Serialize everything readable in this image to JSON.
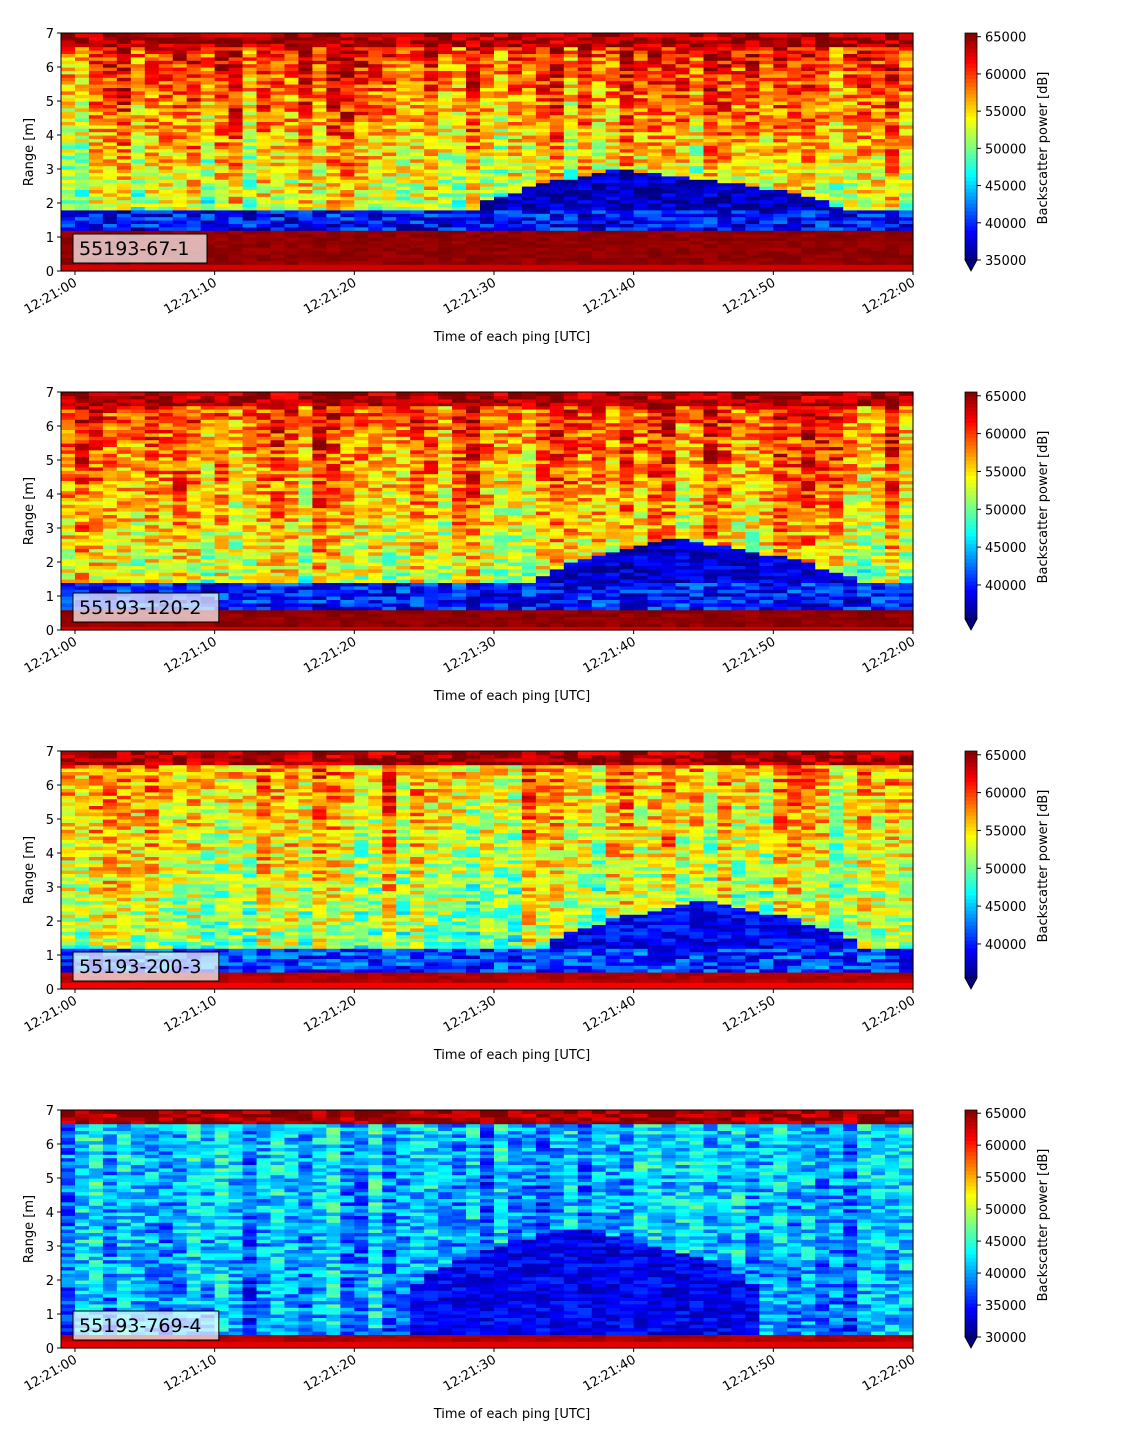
{
  "colormap": "jet",
  "chart_data": [
    {
      "type": "heatmap",
      "label": "55193-67-1",
      "xlabel": "Time of each ping [UTC]",
      "ylabel": "Range [m]",
      "x_ticks": [
        "12:21:00",
        "12:21:10",
        "12:21:20",
        "12:21:30",
        "12:21:40",
        "12:21:50",
        "12:22:00"
      ],
      "xlim": [
        "12:20:59",
        "12:22:00"
      ],
      "ylim": [
        0,
        7
      ],
      "y_ticks": [
        0,
        1,
        2,
        3,
        4,
        5,
        6,
        7
      ],
      "colorbar_label": "Backscatter power [dB]",
      "colorbar_range": [
        35000,
        65500
      ],
      "colorbar_ticks": [
        35000,
        40000,
        45000,
        50000,
        55000,
        60000,
        65000
      ],
      "colorbar_extend": "min",
      "features": {
        "surface_band_max_range_m": 1.2,
        "surface_band_min_range_m": 0.2,
        "gap_top_m": 1.8,
        "shoal_start_s": 29,
        "shoal_end_s": 57,
        "shoal_peak_s": 40,
        "shoal_top_m": 3.0,
        "shoal_bottom_m": 1.5,
        "upper_level": 61000,
        "mid_level": 52000,
        "deep_level": 36000,
        "bottom_glow_level": 65000
      }
    },
    {
      "type": "heatmap",
      "label": "55193-120-2",
      "xlabel": "Time of each ping [UTC]",
      "ylabel": "Range [m]",
      "x_ticks": [
        "12:21:00",
        "12:21:10",
        "12:21:20",
        "12:21:30",
        "12:21:40",
        "12:21:50",
        "12:22:00"
      ],
      "xlim": [
        "12:20:59",
        "12:22:00"
      ],
      "ylim": [
        0,
        7
      ],
      "y_ticks": [
        0,
        1,
        2,
        3,
        4,
        5,
        6,
        7
      ],
      "colorbar_label": "Backscatter power [dB]",
      "colorbar_range": [
        35500,
        65500
      ],
      "colorbar_ticks": [
        40000,
        45000,
        50000,
        55000,
        60000,
        65000
      ],
      "colorbar_extend": "min",
      "features": {
        "surface_band_max_range_m": 0.6,
        "surface_band_min_range_m": 0.1,
        "gap_top_m": 1.4,
        "shoal_start_s": 33,
        "shoal_end_s": 58,
        "shoal_peak_s": 44,
        "shoal_top_m": 2.7,
        "shoal_bottom_m": 1.0,
        "upper_level": 60000,
        "mid_level": 53000,
        "deep_level": 37000,
        "bottom_glow_level": 65000
      }
    },
    {
      "type": "heatmap",
      "label": "55193-200-3",
      "xlabel": "Time of each ping [UTC]",
      "ylabel": "Range [m]",
      "x_ticks": [
        "12:21:00",
        "12:21:10",
        "12:21:20",
        "12:21:30",
        "12:21:40",
        "12:21:50",
        "12:22:00"
      ],
      "xlim": [
        "12:20:59",
        "12:22:00"
      ],
      "ylim": [
        0,
        7
      ],
      "y_ticks": [
        0,
        1,
        2,
        3,
        4,
        5,
        6,
        7
      ],
      "colorbar_label": "Backscatter power [dB]",
      "colorbar_range": [
        35500,
        65500
      ],
      "colorbar_ticks": [
        40000,
        45000,
        50000,
        55000,
        60000,
        65000
      ],
      "colorbar_extend": "min",
      "features": {
        "surface_band_max_range_m": 0.5,
        "surface_band_min_range_m": 0.2,
        "gap_top_m": 1.2,
        "shoal_start_s": 34,
        "shoal_end_s": 58,
        "shoal_peak_s": 46,
        "shoal_top_m": 2.6,
        "shoal_bottom_m": 0.9,
        "upper_level": 57000,
        "mid_level": 51000,
        "deep_level": 38000,
        "bottom_glow_level": 64000
      }
    },
    {
      "type": "heatmap",
      "label": "55193-769-4",
      "xlabel": "Time of each ping [UTC]",
      "ylabel": "Range [m]",
      "x_ticks": [
        "12:21:00",
        "12:21:10",
        "12:21:20",
        "12:21:30",
        "12:21:40",
        "12:21:50",
        "12:22:00"
      ],
      "xlim": [
        "12:20:59",
        "12:22:00"
      ],
      "ylim": [
        0,
        7
      ],
      "y_ticks": [
        0,
        1,
        2,
        3,
        4,
        5,
        6,
        7
      ],
      "colorbar_label": "Backscatter power [dB]",
      "colorbar_range": [
        30000,
        65500
      ],
      "colorbar_ticks": [
        30000,
        35000,
        40000,
        45000,
        50000,
        55000,
        60000,
        65000
      ],
      "colorbar_extend": "min",
      "features": {
        "surface_band_max_range_m": 0.4,
        "surface_band_min_range_m": 0.2,
        "gap_top_m": 0.4,
        "shoal_start_s": 25,
        "shoal_end_s": 50,
        "shoal_peak_s": 37,
        "shoal_top_m": 3.5,
        "shoal_bottom_m": 1.5,
        "upper_level": 41000,
        "mid_level": 39000,
        "deep_level": 33000,
        "bottom_glow_level": 64000
      }
    }
  ]
}
